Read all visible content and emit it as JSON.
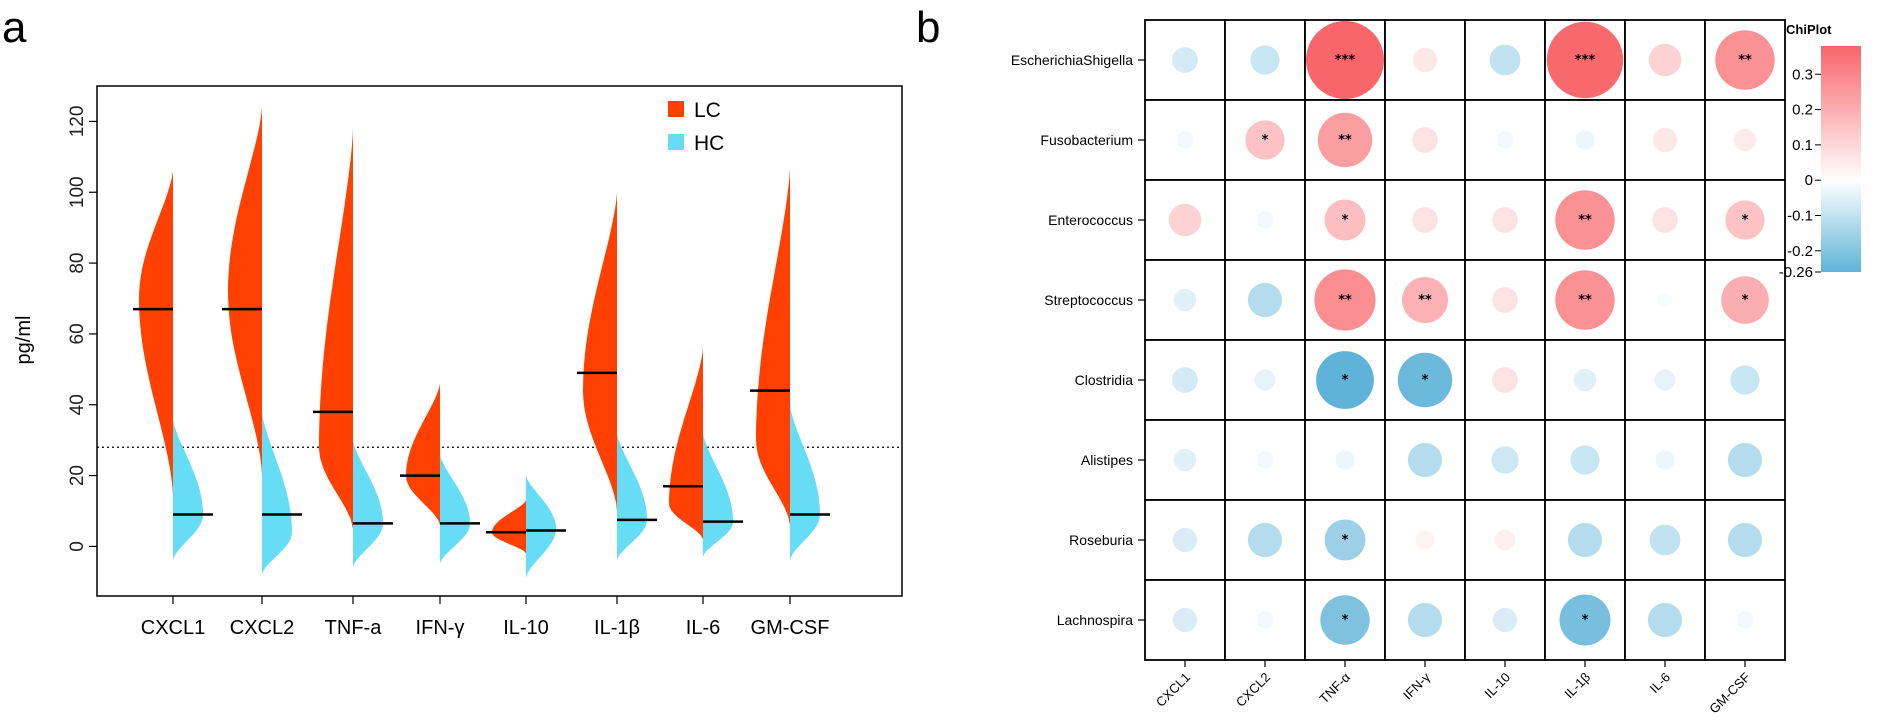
{
  "panels": {
    "a": "a",
    "b": "b"
  },
  "chart_data": [
    {
      "type": "violin",
      "ylabel": "pg/ml",
      "ylim": [
        -14,
        130
      ],
      "yticks": [
        0,
        20,
        40,
        60,
        80,
        100,
        120
      ],
      "threshold": 28,
      "categories": [
        "CXCL1",
        "CXCL2",
        "TNF-a",
        "IFN-γ",
        "IL-10",
        "IL-1β",
        "IL-6",
        "GM-CSF"
      ],
      "legend": [
        {
          "name": "LC",
          "color": "#ff4000"
        },
        {
          "name": "HC",
          "color": "#66dcf5"
        }
      ],
      "series": [
        {
          "name": "LC",
          "medians": [
            67,
            67,
            38,
            20,
            4,
            49,
            17,
            44
          ],
          "mode": [
            70,
            72,
            28,
            20,
            4,
            44,
            12,
            30
          ],
          "min": [
            14,
            20,
            5,
            6,
            -2,
            10,
            2,
            6
          ],
          "max": [
            106,
            124,
            118,
            46,
            13,
            100,
            56,
            107
          ]
        },
        {
          "name": "HC",
          "medians": [
            9,
            9,
            6.5,
            6.5,
            4.5,
            7.5,
            7,
            9
          ],
          "mode": [
            9,
            4,
            6.5,
            6.5,
            5,
            7.5,
            7,
            9
          ],
          "min": [
            -4,
            -8,
            -6,
            -5,
            -9,
            -4,
            -3,
            -4
          ],
          "max": [
            36,
            38,
            30,
            26,
            20,
            32,
            32,
            40
          ]
        }
      ]
    },
    {
      "type": "heatmap",
      "title": "ChiPlot",
      "rows": [
        "EscherichiaShigella",
        "Fusobacterium",
        "Enterococcus",
        "Streptococcus",
        "Clostridia",
        "Alistipes",
        "Roseburia",
        "Lachnospira"
      ],
      "columns": [
        "CXCL1",
        "CXCL2",
        "TNF-α",
        "IFN-γ",
        "IL-10",
        "IL-1β",
        "IL-6",
        "GM-CSF"
      ],
      "values": [
        [
          -0.07,
          -0.09,
          0.38,
          0.06,
          -0.1,
          0.37,
          0.11,
          0.27
        ],
        [
          -0.02,
          0.15,
          0.24,
          0.07,
          -0.02,
          -0.03,
          0.06,
          0.05
        ],
        [
          0.11,
          -0.02,
          0.16,
          0.07,
          0.07,
          0.27,
          0.07,
          0.15
        ],
        [
          -0.05,
          -0.12,
          0.28,
          0.19,
          0.07,
          0.27,
          -0.01,
          0.2
        ],
        [
          -0.07,
          -0.04,
          -0.26,
          -0.24,
          0.07,
          -0.05,
          -0.04,
          -0.09
        ],
        [
          -0.05,
          -0.02,
          -0.03,
          -0.12,
          -0.08,
          -0.09,
          -0.03,
          -0.12
        ],
        [
          -0.06,
          -0.12,
          -0.16,
          0.03,
          0.04,
          -0.12,
          -0.1,
          -0.12
        ],
        [
          -0.06,
          -0.02,
          -0.21,
          -0.12,
          -0.06,
          -0.22,
          -0.12,
          -0.02
        ]
      ],
      "stars": [
        [
          "",
          "",
          "***",
          "",
          "",
          "***",
          "",
          "**"
        ],
        [
          "",
          "*",
          "**",
          "",
          "",
          "",
          "",
          ""
        ],
        [
          "",
          "",
          "*",
          "",
          "",
          "**",
          "",
          "*"
        ],
        [
          "",
          "",
          "**",
          "**",
          "",
          "**",
          "",
          "*"
        ],
        [
          "",
          "",
          "*",
          "*",
          "",
          "",
          "",
          ""
        ],
        [
          "",
          "",
          "",
          "",
          "",
          "",
          "",
          ""
        ],
        [
          "",
          "",
          "*",
          "",
          "",
          "",
          "",
          ""
        ],
        [
          "",
          "",
          "*",
          "",
          "",
          "*",
          "",
          ""
        ]
      ],
      "colorbar": {
        "min": -0.26,
        "max": 0.38,
        "ticks": [
          "0.3",
          "0.2",
          "0.1",
          "0",
          "-0.1",
          "-0.2",
          "-0.26"
        ],
        "tick_values": [
          0.3,
          0.2,
          0.1,
          0,
          -0.1,
          -0.2,
          -0.26
        ],
        "low_color": "#5fb3d8",
        "mid_color": "#ffffff",
        "high_color": "#f8656a"
      }
    }
  ]
}
